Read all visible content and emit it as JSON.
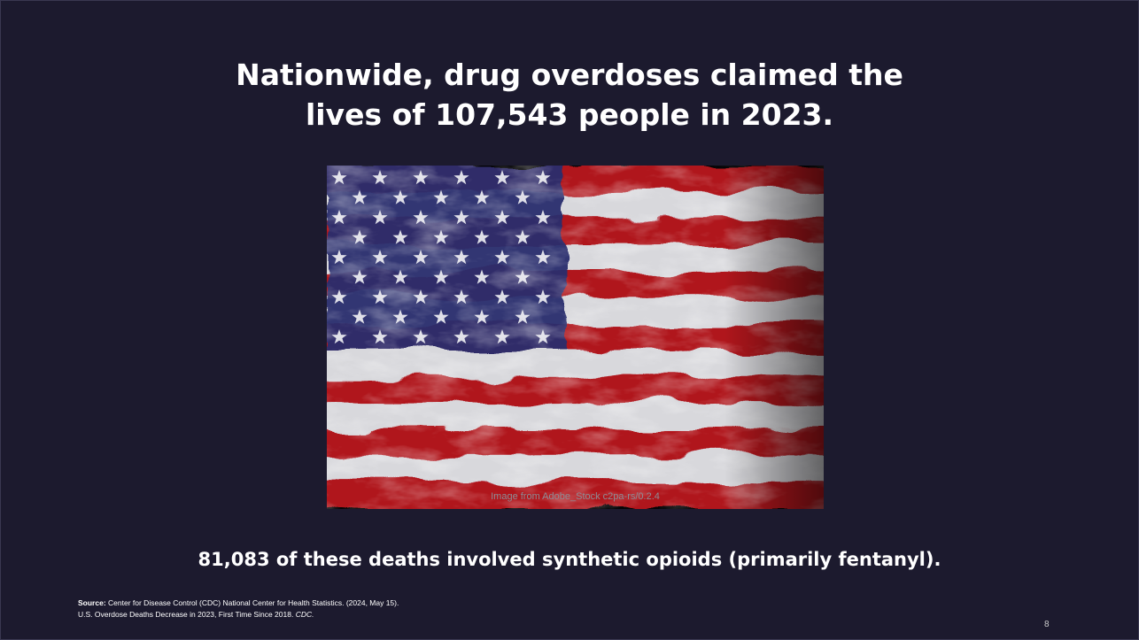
{
  "slide": {
    "title_lines": [
      "Nationwide, drug overdoses claimed the",
      "lives of 107,543 people in 2023."
    ],
    "image_caption": "Image from Adobe_Stock c2pa-rs/0.2.4",
    "subtitle": "81,083 of these deaths involved synthetic opioids (primarily fentanyl).",
    "source": {
      "label": "Source:",
      "line1": "Center for Disease Control (CDC) National Center for Health Statistics. (2024, May 15).",
      "line2": "U.S. Overdose Deaths Decrease in 2023, First Time Since 2018.",
      "line2_italic": "CDC."
    },
    "page_number": "8"
  }
}
